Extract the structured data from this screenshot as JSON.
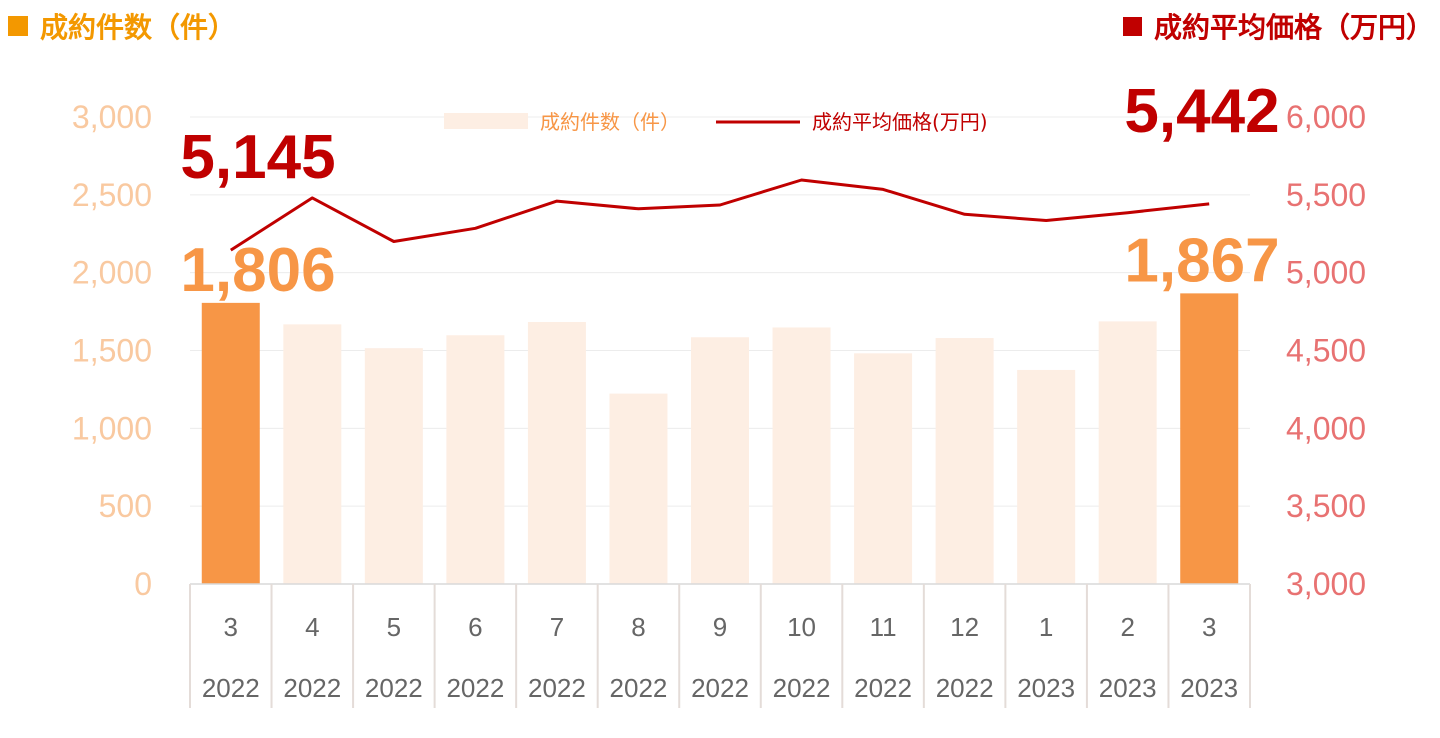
{
  "header": {
    "left_title": "成約件数（件）",
    "right_title": "成約平均価格（万円）"
  },
  "colors": {
    "bar_highlight": "#f79646",
    "bar_normal": "#fdeee3",
    "line": "#c00000",
    "left_axis_text": "#f9c9a0",
    "right_axis_text": "#e87272",
    "header_left": "#f39800",
    "header_right": "#c00000"
  },
  "chart_data": {
    "type": "bar+line",
    "categories": [
      {
        "month": "3",
        "year": "2022"
      },
      {
        "month": "4",
        "year": "2022"
      },
      {
        "month": "5",
        "year": "2022"
      },
      {
        "month": "6",
        "year": "2022"
      },
      {
        "month": "7",
        "year": "2022"
      },
      {
        "month": "8",
        "year": "2022"
      },
      {
        "month": "9",
        "year": "2022"
      },
      {
        "month": "10",
        "year": "2022"
      },
      {
        "month": "11",
        "year": "2022"
      },
      {
        "month": "12",
        "year": "2022"
      },
      {
        "month": "1",
        "year": "2023"
      },
      {
        "month": "2",
        "year": "2023"
      },
      {
        "month": "3",
        "year": "2023"
      }
    ],
    "series": [
      {
        "name": "成約件数（件）",
        "type": "bar",
        "axis": "left",
        "values": [
          1806,
          1668,
          1515,
          1598,
          1683,
          1223,
          1585,
          1648,
          1482,
          1580,
          1375,
          1687,
          1867
        ],
        "highlight": [
          true,
          false,
          false,
          false,
          false,
          false,
          false,
          false,
          false,
          false,
          false,
          false,
          true
        ]
      },
      {
        "name": "成約平均価格(万円)",
        "type": "line",
        "axis": "right",
        "values": [
          5145,
          5480,
          5200,
          5285,
          5460,
          5410,
          5435,
          5595,
          5535,
          5375,
          5335,
          5385,
          5442
        ]
      }
    ],
    "left_axis": {
      "ylim": [
        0,
        3000
      ],
      "ticks": [
        "0",
        "500",
        "1,000",
        "1,500",
        "2,000",
        "2,500",
        "3,000"
      ]
    },
    "right_axis": {
      "ylim": [
        3000,
        6000
      ],
      "ticks": [
        "3,000",
        "3,500",
        "4,000",
        "4,500",
        "5,000",
        "5,500",
        "6,000"
      ]
    },
    "grid": true,
    "legend": "top-center",
    "annotations": [
      {
        "text": "5,145",
        "series": "line",
        "index": 0
      },
      {
        "text": "1,806",
        "series": "bar",
        "index": 0
      },
      {
        "text": "5,442",
        "series": "line",
        "index": 12
      },
      {
        "text": "1,867",
        "series": "bar",
        "index": 12
      }
    ]
  }
}
